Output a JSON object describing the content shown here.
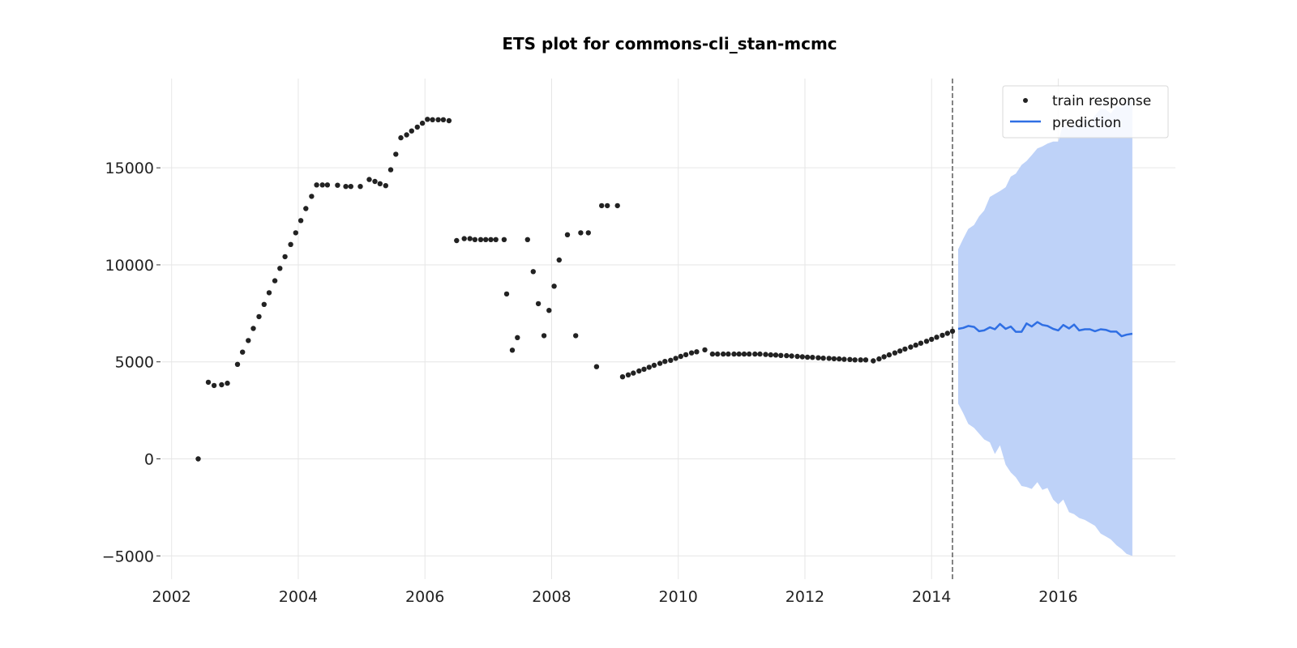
{
  "chart_data": {
    "type": "line",
    "title": "ETS plot for commons-cli_stan-mcmc",
    "xlabel": "",
    "ylabel": "",
    "xlim": [
      2001.85,
      2017.85
    ],
    "ylim": [
      -6200,
      19600
    ],
    "x_ticks": [
      2002,
      2004,
      2006,
      2008,
      2010,
      2012,
      2014,
      2016
    ],
    "x_tick_labels": [
      "2002",
      "2004",
      "2006",
      "2008",
      "2010",
      "2012",
      "2014",
      "2016"
    ],
    "y_ticks": [
      -5000,
      0,
      5000,
      10000,
      15000
    ],
    "y_tick_labels": [
      "−5000",
      "0",
      "5000",
      "10000",
      "15000"
    ],
    "grid": true,
    "legend_position": "top-right",
    "vline_x": 2014.33,
    "colors": {
      "train": "#222222",
      "prediction": "#2f6fe4",
      "interval": "#bed2f8",
      "vline": "#666666"
    },
    "legend": [
      {
        "label": "train response",
        "marker": "dot"
      },
      {
        "label": "prediction",
        "marker": "line"
      }
    ],
    "series": [
      {
        "name": "train response",
        "type": "scatter",
        "points": [
          [
            2002.42,
            0
          ],
          [
            2002.58,
            3950
          ],
          [
            2002.67,
            3780
          ],
          [
            2002.79,
            3820
          ],
          [
            2002.88,
            3900
          ],
          [
            2003.04,
            4870
          ],
          [
            2003.12,
            5500
          ],
          [
            2003.21,
            6100
          ],
          [
            2003.29,
            6720
          ],
          [
            2003.38,
            7330
          ],
          [
            2003.46,
            7960
          ],
          [
            2003.54,
            8560
          ],
          [
            2003.63,
            9180
          ],
          [
            2003.71,
            9820
          ],
          [
            2003.79,
            10420
          ],
          [
            2003.88,
            11050
          ],
          [
            2003.96,
            11650
          ],
          [
            2004.04,
            12280
          ],
          [
            2004.12,
            12900
          ],
          [
            2004.21,
            13530
          ],
          [
            2004.29,
            14120
          ],
          [
            2004.38,
            14120
          ],
          [
            2004.46,
            14120
          ],
          [
            2004.62,
            14100
          ],
          [
            2004.75,
            14040
          ],
          [
            2004.83,
            14040
          ],
          [
            2004.98,
            14040
          ],
          [
            2005.12,
            14400
          ],
          [
            2005.21,
            14300
          ],
          [
            2005.29,
            14180
          ],
          [
            2005.38,
            14080
          ],
          [
            2005.46,
            14900
          ],
          [
            2005.54,
            15700
          ],
          [
            2005.62,
            16550
          ],
          [
            2005.71,
            16700
          ],
          [
            2005.79,
            16900
          ],
          [
            2005.88,
            17100
          ],
          [
            2005.96,
            17300
          ],
          [
            2006.04,
            17500
          ],
          [
            2006.12,
            17480
          ],
          [
            2006.21,
            17480
          ],
          [
            2006.29,
            17480
          ],
          [
            2006.38,
            17430
          ],
          [
            2006.5,
            11250
          ],
          [
            2006.62,
            11350
          ],
          [
            2006.71,
            11350
          ],
          [
            2006.79,
            11300
          ],
          [
            2006.88,
            11300
          ],
          [
            2006.96,
            11300
          ],
          [
            2007.04,
            11300
          ],
          [
            2007.12,
            11300
          ],
          [
            2007.25,
            11300
          ],
          [
            2007.29,
            8500
          ],
          [
            2007.38,
            5600
          ],
          [
            2007.46,
            6250
          ],
          [
            2007.62,
            11300
          ],
          [
            2007.71,
            9650
          ],
          [
            2007.79,
            8000
          ],
          [
            2007.88,
            6350
          ],
          [
            2007.96,
            7650
          ],
          [
            2008.04,
            8900
          ],
          [
            2008.12,
            10250
          ],
          [
            2008.25,
            11550
          ],
          [
            2008.38,
            6350
          ],
          [
            2008.46,
            11650
          ],
          [
            2008.58,
            11650
          ],
          [
            2008.71,
            4750
          ],
          [
            2008.79,
            13050
          ],
          [
            2008.88,
            13050
          ],
          [
            2009.04,
            13050
          ],
          [
            2009.12,
            4230
          ],
          [
            2009.21,
            4330
          ],
          [
            2009.29,
            4420
          ],
          [
            2009.38,
            4530
          ],
          [
            2009.46,
            4620
          ],
          [
            2009.54,
            4720
          ],
          [
            2009.62,
            4820
          ],
          [
            2009.71,
            4920
          ],
          [
            2009.79,
            5020
          ],
          [
            2009.88,
            5080
          ],
          [
            2009.96,
            5180
          ],
          [
            2010.04,
            5280
          ],
          [
            2010.12,
            5370
          ],
          [
            2010.21,
            5460
          ],
          [
            2010.29,
            5520
          ],
          [
            2010.42,
            5620
          ],
          [
            2010.54,
            5400
          ],
          [
            2010.62,
            5400
          ],
          [
            2010.71,
            5400
          ],
          [
            2010.79,
            5400
          ],
          [
            2010.88,
            5400
          ],
          [
            2010.96,
            5400
          ],
          [
            2011.04,
            5400
          ],
          [
            2011.12,
            5400
          ],
          [
            2011.21,
            5400
          ],
          [
            2011.29,
            5400
          ],
          [
            2011.38,
            5380
          ],
          [
            2011.46,
            5360
          ],
          [
            2011.54,
            5350
          ],
          [
            2011.62,
            5330
          ],
          [
            2011.71,
            5320
          ],
          [
            2011.79,
            5300
          ],
          [
            2011.88,
            5280
          ],
          [
            2011.96,
            5260
          ],
          [
            2012.04,
            5240
          ],
          [
            2012.12,
            5230
          ],
          [
            2012.21,
            5210
          ],
          [
            2012.29,
            5190
          ],
          [
            2012.38,
            5180
          ],
          [
            2012.46,
            5160
          ],
          [
            2012.54,
            5150
          ],
          [
            2012.62,
            5130
          ],
          [
            2012.71,
            5120
          ],
          [
            2012.79,
            5100
          ],
          [
            2012.88,
            5100
          ],
          [
            2012.96,
            5100
          ],
          [
            2013.08,
            5050
          ],
          [
            2013.17,
            5150
          ],
          [
            2013.25,
            5260
          ],
          [
            2013.33,
            5360
          ],
          [
            2013.42,
            5460
          ],
          [
            2013.5,
            5560
          ],
          [
            2013.58,
            5660
          ],
          [
            2013.67,
            5760
          ],
          [
            2013.75,
            5860
          ],
          [
            2013.83,
            5960
          ],
          [
            2013.92,
            6060
          ],
          [
            2014.0,
            6160
          ],
          [
            2014.08,
            6270
          ],
          [
            2014.17,
            6370
          ],
          [
            2014.25,
            6470
          ],
          [
            2014.33,
            6580
          ]
        ]
      },
      {
        "name": "prediction",
        "type": "line",
        "points": [
          [
            2014.42,
            6700
          ],
          [
            2014.5,
            6750
          ],
          [
            2014.58,
            6850
          ],
          [
            2014.67,
            6800
          ],
          [
            2014.75,
            6580
          ],
          [
            2014.83,
            6620
          ],
          [
            2014.92,
            6780
          ],
          [
            2015.0,
            6680
          ],
          [
            2015.08,
            6950
          ],
          [
            2015.17,
            6700
          ],
          [
            2015.25,
            6820
          ],
          [
            2015.33,
            6550
          ],
          [
            2015.42,
            6550
          ],
          [
            2015.5,
            6980
          ],
          [
            2015.58,
            6820
          ],
          [
            2015.67,
            7050
          ],
          [
            2015.75,
            6900
          ],
          [
            2015.83,
            6850
          ],
          [
            2015.92,
            6700
          ],
          [
            2016.0,
            6620
          ],
          [
            2016.08,
            6900
          ],
          [
            2016.17,
            6720
          ],
          [
            2016.25,
            6920
          ],
          [
            2016.33,
            6620
          ],
          [
            2016.42,
            6680
          ],
          [
            2016.5,
            6680
          ],
          [
            2016.58,
            6580
          ],
          [
            2016.67,
            6680
          ],
          [
            2016.75,
            6650
          ],
          [
            2016.83,
            6560
          ],
          [
            2016.92,
            6560
          ],
          [
            2017.0,
            6320
          ],
          [
            2017.08,
            6400
          ],
          [
            2017.17,
            6450
          ]
        ]
      },
      {
        "name": "prediction interval",
        "type": "area",
        "x": [
          2014.42,
          2014.5,
          2014.58,
          2014.67,
          2014.75,
          2014.83,
          2014.92,
          2015.0,
          2015.08,
          2015.17,
          2015.25,
          2015.33,
          2015.42,
          2015.5,
          2015.58,
          2015.67,
          2015.75,
          2015.83,
          2015.92,
          2016.0,
          2016.08,
          2016.17,
          2016.25,
          2016.33,
          2016.42,
          2016.5,
          2016.58,
          2016.67,
          2016.75,
          2016.83,
          2016.92,
          2017.0,
          2017.08,
          2017.17
        ],
        "upper": [
          10800,
          11350,
          11850,
          12050,
          12500,
          12800,
          13500,
          13650,
          13800,
          14000,
          14550,
          14700,
          15150,
          15350,
          15650,
          16000,
          16100,
          16250,
          16350,
          16350,
          17300,
          16950,
          17350,
          17150,
          17550,
          17350,
          17700,
          18050,
          18000,
          17800,
          18200,
          18100,
          18400,
          18600
        ],
        "lower": [
          2850,
          2350,
          1800,
          1600,
          1300,
          1000,
          850,
          250,
          700,
          -300,
          -700,
          -950,
          -1400,
          -1450,
          -1550,
          -1200,
          -1600,
          -1500,
          -2100,
          -2350,
          -2100,
          -2750,
          -2850,
          -3050,
          -3150,
          -3300,
          -3450,
          -3850,
          -4000,
          -4150,
          -4450,
          -4650,
          -4900,
          -5000
        ]
      }
    ]
  }
}
